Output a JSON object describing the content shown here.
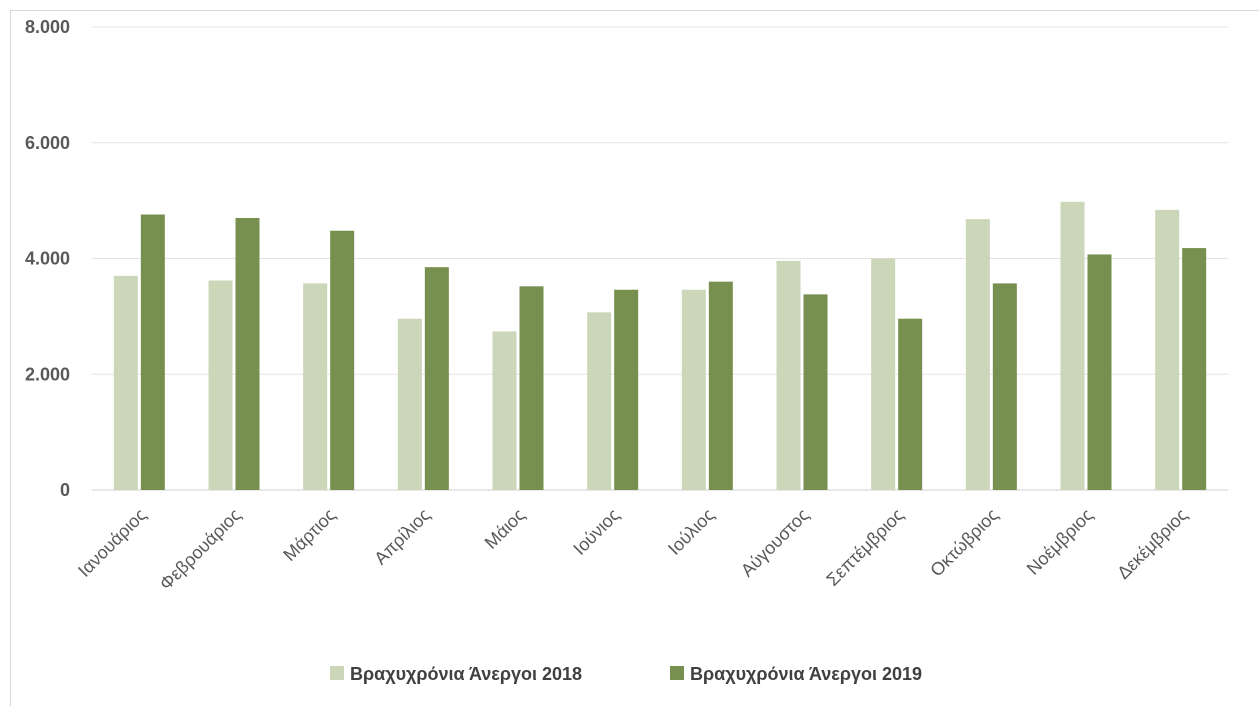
{
  "chart_data": {
    "type": "bar",
    "categories": [
      "Ιανουάριος",
      "Φεβρουάριος",
      "Μάρτιος",
      "Απρίλιος",
      "Μάιος",
      "Ιούνιος",
      "Ιούλιος",
      "Αύγουστος",
      "Σεπτέμβριος",
      "Οκτώβριος",
      "Νοέμβριος",
      "Δεκέμβριος"
    ],
    "series": [
      {
        "name": "Βραχυχρόνια Άνεργοι 2018",
        "color": "#ccd6b8",
        "values": [
          3700,
          3620,
          3570,
          2960,
          2740,
          3070,
          3460,
          3960,
          4000,
          4680,
          4980,
          4840
        ]
      },
      {
        "name": "Βραχυχρόνια Άνεργοι 2019",
        "color": "#77904f",
        "values": [
          4760,
          4700,
          4480,
          3850,
          3520,
          3460,
          3600,
          3380,
          2960,
          3570,
          4070,
          4180
        ]
      }
    ],
    "y_ticks": [
      "0",
      "2.000",
      "4.000",
      "6.000",
      "8.000"
    ],
    "ylim": [
      0,
      8000
    ],
    "grid": true,
    "legend_position": "bottom"
  }
}
